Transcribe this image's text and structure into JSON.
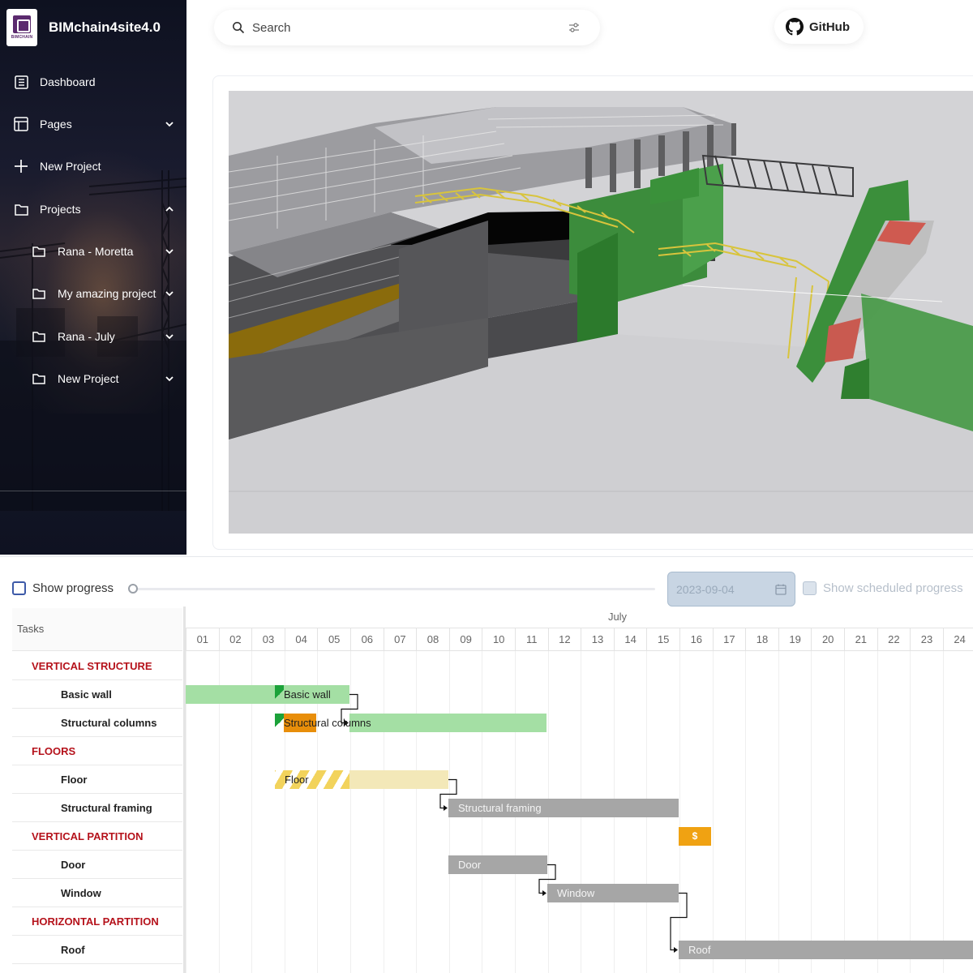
{
  "app": {
    "name": "BIMchain4site4.0",
    "logo_text": "BIMCHAIN"
  },
  "sidebar": {
    "items": [
      {
        "label": "Dashboard",
        "icon": "dashboard-icon"
      },
      {
        "label": "Pages",
        "icon": "pages-icon",
        "chevron": "down"
      },
      {
        "label": "New Project",
        "icon": "plus-icon"
      },
      {
        "label": "Projects",
        "icon": "folder-icon",
        "chevron": "up"
      }
    ],
    "projects": [
      {
        "label": "Rana - Moretta",
        "icon": "folder-icon"
      },
      {
        "label": "My amazing project",
        "icon": "folder-icon"
      },
      {
        "label": "Rana - July",
        "icon": "folder-icon"
      },
      {
        "label": "New Project",
        "icon": "folder-icon"
      }
    ]
  },
  "search": {
    "placeholder": "Search",
    "icon": "search-icon",
    "filter_icon": "filter-icon"
  },
  "github": {
    "label": "GitHub",
    "icon": "github-icon"
  },
  "viewer": {
    "description_icon": "bim-3d-model"
  },
  "gantt": {
    "show_progress_label": "Show progress",
    "show_progress_checked": false,
    "date_value": "2023-09-04",
    "show_scheduled_label": "Show scheduled progress",
    "tasks_header": "Tasks",
    "month": "July",
    "days": [
      "01",
      "02",
      "03",
      "04",
      "05",
      "06",
      "07",
      "08",
      "09",
      "10",
      "11",
      "12",
      "13",
      "14",
      "15",
      "16",
      "17",
      "18",
      "19",
      "20",
      "21",
      "22",
      "23",
      "24"
    ],
    "rows": [
      {
        "type": "group",
        "label": "VERTICAL STRUCTURE"
      },
      {
        "type": "item",
        "label": "Basic wall"
      },
      {
        "type": "item",
        "label": "Structural columns"
      },
      {
        "type": "group",
        "label": "FLOORS"
      },
      {
        "type": "item",
        "label": "Floor"
      },
      {
        "type": "item",
        "label": "Structural framing"
      },
      {
        "type": "group",
        "label": "VERTICAL PARTITION"
      },
      {
        "type": "item",
        "label": "Door"
      },
      {
        "type": "item",
        "label": "Window"
      },
      {
        "type": "group",
        "label": "HORIZONTAL PARTITION"
      },
      {
        "type": "item",
        "label": "Roof"
      }
    ],
    "bars": {
      "basic_wall": "Basic wall",
      "structural_columns": "Structural columns",
      "floor": "Floor",
      "structural_framing": "Structural framing",
      "milestone": "$",
      "door": "Door",
      "window": "Window",
      "roof": "Roof"
    },
    "colors": {
      "done": "#a4dfa4",
      "planned": "#a6a6a6",
      "floor": "#f3e8b8",
      "milestone": "#f0a212",
      "group_text": "#b5121b"
    }
  }
}
